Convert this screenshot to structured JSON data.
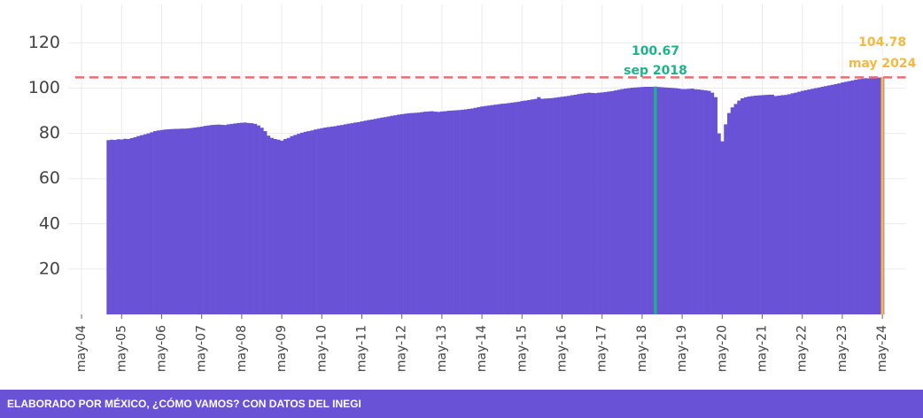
{
  "chart_data": {
    "type": "bar",
    "color": "#6a52d6",
    "x": [
      "2005-01",
      "2005-02",
      "2005-03",
      "2005-04",
      "2005-05",
      "2005-06",
      "2005-07",
      "2005-08",
      "2005-09",
      "2005-10",
      "2005-11",
      "2005-12",
      "2006-01",
      "2006-02",
      "2006-03",
      "2006-04",
      "2006-05",
      "2006-06",
      "2006-07",
      "2006-08",
      "2006-09",
      "2006-10",
      "2006-11",
      "2006-12",
      "2007-01",
      "2007-02",
      "2007-03",
      "2007-04",
      "2007-05",
      "2007-06",
      "2007-07",
      "2007-08",
      "2007-09",
      "2007-10",
      "2007-11",
      "2007-12",
      "2008-01",
      "2008-02",
      "2008-03",
      "2008-04",
      "2008-05",
      "2008-06",
      "2008-07",
      "2008-08",
      "2008-09",
      "2008-10",
      "2008-11",
      "2008-12",
      "2009-01",
      "2009-02",
      "2009-03",
      "2009-04",
      "2009-05",
      "2009-06",
      "2009-07",
      "2009-08",
      "2009-09",
      "2009-10",
      "2009-11",
      "2009-12",
      "2010-01",
      "2010-02",
      "2010-03",
      "2010-04",
      "2010-05",
      "2010-06",
      "2010-07",
      "2010-08",
      "2010-09",
      "2010-10",
      "2010-11",
      "2010-12",
      "2011-01",
      "2011-02",
      "2011-03",
      "2011-04",
      "2011-05",
      "2011-06",
      "2011-07",
      "2011-08",
      "2011-09",
      "2011-10",
      "2011-11",
      "2011-12",
      "2012-01",
      "2012-02",
      "2012-03",
      "2012-04",
      "2012-05",
      "2012-06",
      "2012-07",
      "2012-08",
      "2012-09",
      "2012-10",
      "2012-11",
      "2012-12",
      "2013-01",
      "2013-02",
      "2013-03",
      "2013-04",
      "2013-05",
      "2013-06",
      "2013-07",
      "2013-08",
      "2013-09",
      "2013-10",
      "2013-11",
      "2013-12",
      "2014-01",
      "2014-02",
      "2014-03",
      "2014-04",
      "2014-05",
      "2014-06",
      "2014-07",
      "2014-08",
      "2014-09",
      "2014-10",
      "2014-11",
      "2014-12",
      "2015-01",
      "2015-02",
      "2015-03",
      "2015-04",
      "2015-05",
      "2015-06",
      "2015-07",
      "2015-08",
      "2015-09",
      "2015-10",
      "2015-11",
      "2015-12",
      "2016-01",
      "2016-02",
      "2016-03",
      "2016-04",
      "2016-05",
      "2016-06",
      "2016-07",
      "2016-08",
      "2016-09",
      "2016-10",
      "2016-11",
      "2016-12",
      "2017-01",
      "2017-02",
      "2017-03",
      "2017-04",
      "2017-05",
      "2017-06",
      "2017-07",
      "2017-08",
      "2017-09",
      "2017-10",
      "2017-11",
      "2017-12",
      "2018-01",
      "2018-02",
      "2018-03",
      "2018-04",
      "2018-05",
      "2018-06",
      "2018-07",
      "2018-08",
      "2018-09",
      "2018-10",
      "2018-11",
      "2018-12",
      "2019-01",
      "2019-02",
      "2019-03",
      "2019-04",
      "2019-05",
      "2019-06",
      "2019-07",
      "2019-08",
      "2019-09",
      "2019-10",
      "2019-11",
      "2019-12",
      "2020-01",
      "2020-02",
      "2020-03",
      "2020-04",
      "2020-05",
      "2020-06",
      "2020-07",
      "2020-08",
      "2020-09",
      "2020-10",
      "2020-11",
      "2020-12",
      "2021-01",
      "2021-02",
      "2021-03",
      "2021-04",
      "2021-05",
      "2021-06",
      "2021-07",
      "2021-08",
      "2021-09",
      "2021-10",
      "2021-11",
      "2021-12",
      "2022-01",
      "2022-02",
      "2022-03",
      "2022-04",
      "2022-05",
      "2022-06",
      "2022-07",
      "2022-08",
      "2022-09",
      "2022-10",
      "2022-11",
      "2022-12",
      "2023-01",
      "2023-02",
      "2023-03",
      "2023-04",
      "2023-05",
      "2023-06",
      "2023-07",
      "2023-08",
      "2023-09",
      "2023-10",
      "2023-11",
      "2023-12",
      "2024-01",
      "2024-02",
      "2024-03",
      "2024-04",
      "2024-05"
    ],
    "values": [
      77.0,
      77.2,
      77.1,
      77.4,
      77.3,
      77.6,
      77.5,
      77.9,
      78.3,
      78.8,
      79.2,
      79.6,
      80.0,
      80.5,
      81.0,
      81.3,
      81.5,
      81.7,
      81.8,
      81.9,
      82.0,
      82.0,
      82.1,
      82.1,
      82.2,
      82.4,
      82.6,
      82.8,
      83.0,
      83.3,
      83.5,
      83.7,
      83.8,
      83.9,
      83.8,
      83.7,
      84.0,
      84.2,
      84.4,
      84.6,
      84.7,
      84.8,
      84.6,
      84.5,
      84.2,
      83.5,
      82.5,
      81.0,
      79.0,
      78.0,
      77.5,
      77.2,
      76.8,
      77.5,
      78.0,
      78.8,
      79.3,
      79.8,
      80.3,
      80.7,
      81.0,
      81.3,
      81.7,
      82.0,
      82.3,
      82.6,
      82.8,
      83.0,
      83.2,
      83.5,
      83.7,
      84.0,
      84.3,
      84.5,
      84.8,
      85.0,
      85.3,
      85.6,
      85.9,
      86.1,
      86.4,
      86.7,
      87.0,
      87.2,
      87.5,
      87.8,
      88.0,
      88.3,
      88.5,
      88.7,
      88.9,
      89.0,
      89.1,
      89.2,
      89.4,
      89.6,
      89.7,
      89.8,
      89.6,
      89.5,
      89.7,
      89.8,
      90.0,
      90.1,
      90.2,
      90.3,
      90.4,
      90.6,
      90.8,
      91.0,
      91.3,
      91.6,
      91.9,
      92.1,
      92.3,
      92.5,
      92.7,
      92.9,
      93.1,
      93.2,
      93.4,
      93.6,
      93.8,
      94.0,
      94.3,
      94.5,
      94.7,
      95.0,
      95.2,
      96.0,
      95.3,
      95.4,
      95.5,
      95.6,
      95.8,
      96.0,
      96.2,
      96.4,
      96.6,
      96.9,
      97.1,
      97.4,
      97.6,
      97.8,
      98.0,
      97.9,
      97.8,
      98.0,
      98.1,
      98.3,
      98.5,
      98.7,
      99.0,
      99.3,
      99.6,
      99.8,
      100.0,
      100.2,
      100.3,
      100.4,
      100.5,
      100.6,
      100.6,
      100.6,
      100.67,
      100.5,
      100.4,
      100.3,
      100.2,
      100.1,
      100.0,
      99.8,
      99.6,
      99.6,
      99.7,
      99.8,
      99.5,
      99.4,
      99.2,
      99.0,
      98.8,
      98.0,
      96.0,
      80.0,
      76.5,
      84.0,
      89.0,
      91.5,
      93.0,
      94.5,
      95.5,
      96.0,
      96.3,
      96.5,
      96.7,
      96.8,
      96.9,
      97.0,
      97.1,
      97.1,
      96.5,
      96.7,
      96.9,
      97.0,
      97.3,
      97.7,
      98.0,
      98.4,
      98.8,
      99.1,
      99.4,
      99.7,
      100.0,
      100.3,
      100.6,
      100.9,
      101.2,
      101.5,
      101.8,
      102.1,
      102.5,
      102.8,
      103.1,
      103.4,
      103.7,
      104.0,
      104.2,
      104.4,
      104.3,
      104.5,
      104.6,
      104.7,
      104.78
    ],
    "xlim": [
      "2004-01",
      "2024-12"
    ],
    "xticks": [
      {
        "value": "2004-05",
        "label": "may-04"
      },
      {
        "value": "2005-05",
        "label": "may-05"
      },
      {
        "value": "2006-05",
        "label": "may-06"
      },
      {
        "value": "2007-05",
        "label": "may-07"
      },
      {
        "value": "2008-05",
        "label": "may-08"
      },
      {
        "value": "2009-05",
        "label": "may-09"
      },
      {
        "value": "2010-05",
        "label": "may-10"
      },
      {
        "value": "2011-05",
        "label": "may-11"
      },
      {
        "value": "2012-05",
        "label": "may-12"
      },
      {
        "value": "2013-05",
        "label": "may-13"
      },
      {
        "value": "2014-05",
        "label": "may-14"
      },
      {
        "value": "2015-05",
        "label": "may-15"
      },
      {
        "value": "2016-05",
        "label": "may-16"
      },
      {
        "value": "2017-05",
        "label": "may-17"
      },
      {
        "value": "2018-05",
        "label": "may-18"
      },
      {
        "value": "2019-05",
        "label": "may-19"
      },
      {
        "value": "2020-05",
        "label": "may-20"
      },
      {
        "value": "2021-05",
        "label": "may-21"
      },
      {
        "value": "2022-05",
        "label": "may-22"
      },
      {
        "value": "2023-05",
        "label": "may-23"
      },
      {
        "value": "2024-05",
        "label": "may-24"
      }
    ],
    "ylim": [
      0,
      137
    ],
    "yticks": [
      20,
      40,
      60,
      80,
      100,
      120
    ],
    "grid": true,
    "highlights": [
      {
        "x": "2018-09",
        "value": 100.67,
        "label": "sep 2018",
        "color": "#19b589"
      },
      {
        "x": "2024-05",
        "value": 104.78,
        "label": "may 2024",
        "color": "#f5b841"
      }
    ],
    "reference_line_color": "#f26b6b"
  },
  "footer": "ELABORADO POR MÉXICO, ¿CÓMO VAMOS? CON DATOS DEL INEGI"
}
